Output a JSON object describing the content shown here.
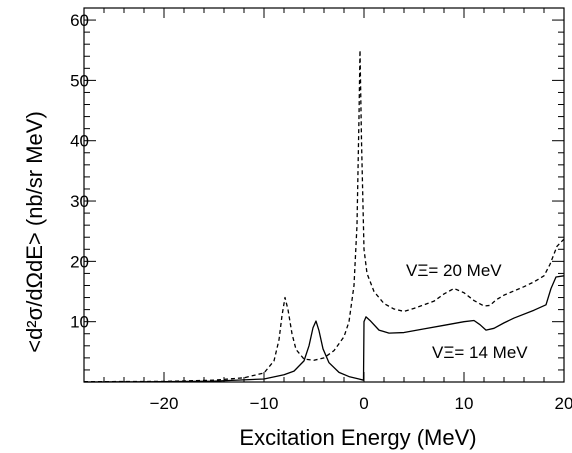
{
  "chart_data": {
    "type": "line",
    "xlabel": "Excitation Energy  (MeV)",
    "ylabel": "<d²σ/dΩdE> (nb/sr MeV)",
    "xlim": [
      -28,
      20
    ],
    "ylim": [
      0,
      62
    ],
    "x_ticks": [
      -20,
      -10,
      0,
      10,
      20
    ],
    "y_ticks": [
      10,
      20,
      30,
      40,
      50,
      60
    ],
    "grid": false,
    "series": [
      {
        "name": "VΞ= 20 MeV",
        "style": "dashed",
        "color": "#000000",
        "points": [
          [
            -28,
            0.05
          ],
          [
            -20,
            0.1
          ],
          [
            -15,
            0.3
          ],
          [
            -12,
            0.7
          ],
          [
            -10,
            1.5
          ],
          [
            -9,
            3.5
          ],
          [
            -8.5,
            7
          ],
          [
            -8.2,
            11
          ],
          [
            -7.9,
            14
          ],
          [
            -7.6,
            12
          ],
          [
            -7.2,
            8
          ],
          [
            -6.8,
            5.4
          ],
          [
            -6,
            3.8
          ],
          [
            -5,
            3.6
          ],
          [
            -4,
            4.0
          ],
          [
            -3,
            5.2
          ],
          [
            -2,
            7.5
          ],
          [
            -1.5,
            10
          ],
          [
            -1,
            16
          ],
          [
            -0.7,
            26
          ],
          [
            -0.5,
            44
          ],
          [
            -0.4,
            55
          ],
          [
            -0.25,
            40
          ],
          [
            0,
            22
          ],
          [
            0.3,
            18
          ],
          [
            1,
            15
          ],
          [
            2,
            13
          ],
          [
            3,
            12.1
          ],
          [
            4,
            11.7
          ],
          [
            5,
            12.2
          ],
          [
            6,
            12.8
          ],
          [
            7,
            13.4
          ],
          [
            8,
            14.6
          ],
          [
            9,
            15.5
          ],
          [
            10,
            14.8
          ],
          [
            11,
            13.5
          ],
          [
            12,
            12.6
          ],
          [
            12.6,
            12.7
          ],
          [
            13.2,
            13.6
          ],
          [
            14,
            14.4
          ],
          [
            15,
            15.1
          ],
          [
            16,
            15.8
          ],
          [
            17,
            16.6
          ],
          [
            18,
            17.6
          ],
          [
            18.6,
            19.5
          ],
          [
            19.3,
            22.5
          ],
          [
            20,
            23.7
          ]
        ]
      },
      {
        "name": "VΞ= 14 MeV",
        "style": "solid",
        "color": "#000000",
        "points": [
          [
            -28,
            0
          ],
          [
            -20,
            0.05
          ],
          [
            -15,
            0.15
          ],
          [
            -10,
            0.5
          ],
          [
            -8,
            1.2
          ],
          [
            -7,
            1.8
          ],
          [
            -6,
            3.5
          ],
          [
            -5.5,
            6
          ],
          [
            -5.1,
            9
          ],
          [
            -4.8,
            10.1
          ],
          [
            -4.5,
            8.5
          ],
          [
            -4.1,
            5.5
          ],
          [
            -3.5,
            3.2
          ],
          [
            -2.5,
            1.6
          ],
          [
            -1.5,
            0.9
          ],
          [
            -0.5,
            0.5
          ],
          [
            -0.05,
            0.3
          ],
          [
            0,
            10
          ],
          [
            0.2,
            10.8
          ],
          [
            0.6,
            10.2
          ],
          [
            1.5,
            8.6
          ],
          [
            2.5,
            8.1
          ],
          [
            4,
            8.2
          ],
          [
            6,
            8.8
          ],
          [
            8,
            9.4
          ],
          [
            10,
            10
          ],
          [
            11,
            10.2
          ],
          [
            11.6,
            9.5
          ],
          [
            12.2,
            8.6
          ],
          [
            13,
            8.9
          ],
          [
            14,
            9.8
          ],
          [
            15,
            10.6
          ],
          [
            17,
            11.9
          ],
          [
            18.2,
            12.8
          ],
          [
            18.7,
            15.5
          ],
          [
            19.2,
            17.4
          ],
          [
            20,
            17.6
          ]
        ]
      }
    ],
    "annotations": [
      {
        "text": "VΞ= 20 MeV",
        "series": 0
      },
      {
        "text": "VΞ= 14 MeV",
        "series": 1
      }
    ]
  }
}
